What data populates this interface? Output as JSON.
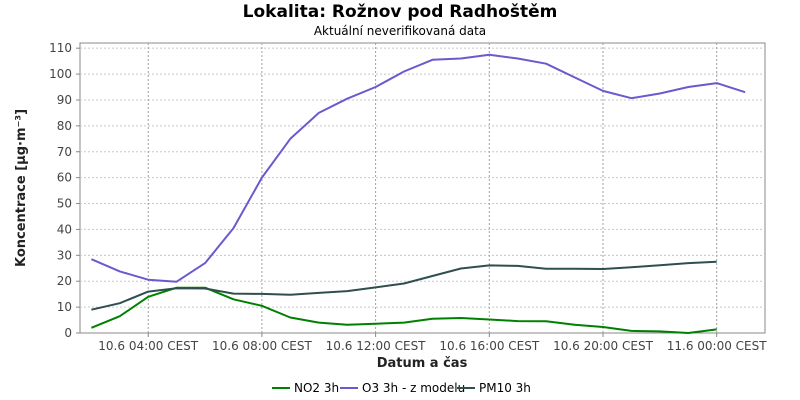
{
  "chart_data": {
    "type": "line",
    "title": "Lokalita: Rožnov pod Radhoštěm",
    "subtitle": "Aktuální neverifikovaná data",
    "xlabel": "Datum a čas",
    "ylabel": "Koncentrace [µg·m⁻³]",
    "ylim": [
      0,
      112
    ],
    "yticks": [
      0,
      10,
      20,
      30,
      40,
      50,
      60,
      70,
      80,
      90,
      100,
      110
    ],
    "xlim": [
      0.6,
      24.7
    ],
    "xticks": [
      {
        "x": 3,
        "label": "10.6 04:00 CEST"
      },
      {
        "x": 7,
        "label": "10.6 08:00 CEST"
      },
      {
        "x": 11,
        "label": "10.6 12:00 CEST"
      },
      {
        "x": 15,
        "label": "10.6 16:00 CEST"
      },
      {
        "x": 19,
        "label": "10.6 20:00 CEST"
      },
      {
        "x": 23,
        "label": "11.6 00:00 CEST"
      }
    ],
    "grid": true,
    "legend_position": "bottom",
    "series": [
      {
        "name": "NO2 3h",
        "color": "#008000",
        "x": [
          1,
          2,
          3,
          4,
          5,
          6,
          7,
          8,
          9,
          10,
          11,
          12,
          13,
          14,
          15,
          16,
          17,
          18,
          19,
          20,
          21,
          22,
          23
        ],
        "values": [
          2,
          6.5,
          14,
          17.5,
          17.5,
          13,
          10.5,
          6,
          4,
          3.2,
          3.6,
          4,
          5.5,
          5.8,
          5.2,
          4.6,
          4.5,
          3.2,
          2.3,
          0.8,
          0.6,
          0,
          1.4
        ]
      },
      {
        "name": "O3 3h - z modelu",
        "color": "#6a5acd",
        "x": [
          1,
          2,
          3,
          4,
          5,
          6,
          7,
          8,
          9,
          10,
          11,
          12,
          13,
          14,
          15,
          16,
          17,
          18,
          19,
          20,
          21,
          22,
          23,
          24
        ],
        "values": [
          28.5,
          23.8,
          20.6,
          19.8,
          27,
          40.5,
          60,
          75,
          85,
          90.5,
          95,
          101,
          105.5,
          106,
          107.5,
          106,
          104,
          98.7,
          93.5,
          90.7,
          92.5,
          95,
          96.5,
          93
        ]
      },
      {
        "name": "PM10 3h",
        "color": "#2f4f4f",
        "x": [
          1,
          2,
          3,
          4,
          5,
          6,
          7,
          8,
          9,
          10,
          11,
          12,
          13,
          14,
          15,
          16,
          17,
          18,
          19,
          20,
          21,
          22,
          23
        ],
        "values": [
          9,
          11.5,
          16,
          17.3,
          17.2,
          15.2,
          15.1,
          14.8,
          15.5,
          16.2,
          17.6,
          19.1,
          22,
          24.9,
          26.1,
          25.9,
          24.8,
          24.8,
          24.7,
          25.4,
          26.2,
          27,
          27.5
        ]
      }
    ]
  }
}
